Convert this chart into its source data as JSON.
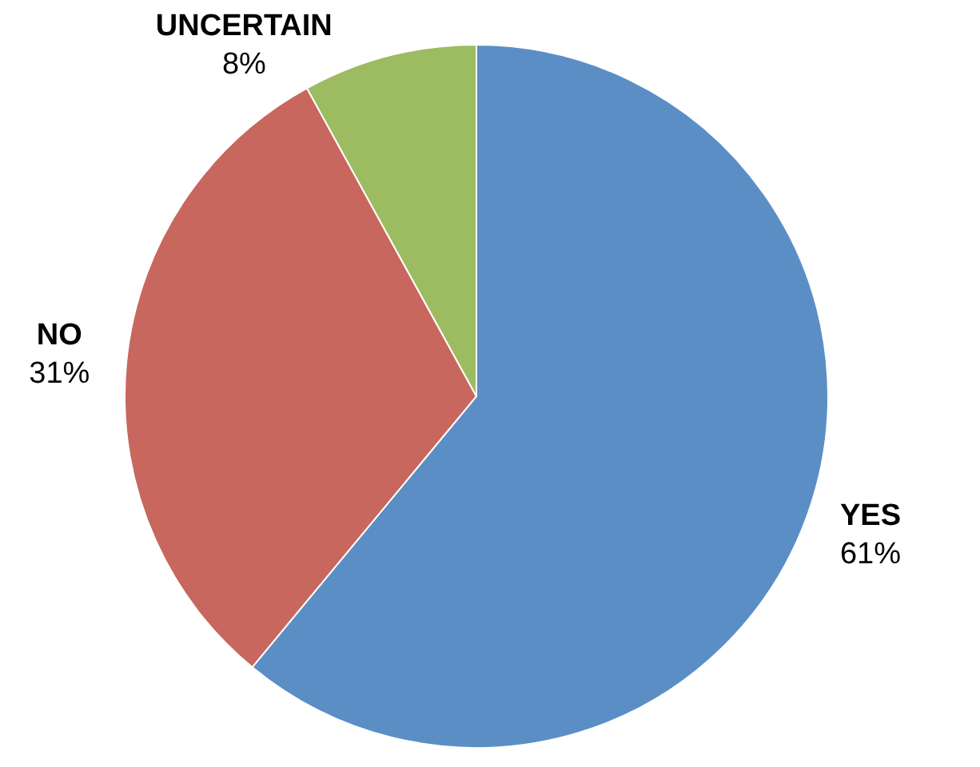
{
  "chart_data": {
    "type": "pie",
    "categories": [
      "YES",
      "NO",
      "UNCERTAIN"
    ],
    "values": [
      61,
      31,
      8
    ],
    "value_labels": [
      "61%",
      "31%",
      "8%"
    ],
    "colors": [
      "#5b8ec4",
      "#c8675e",
      "#9dbb61"
    ]
  }
}
